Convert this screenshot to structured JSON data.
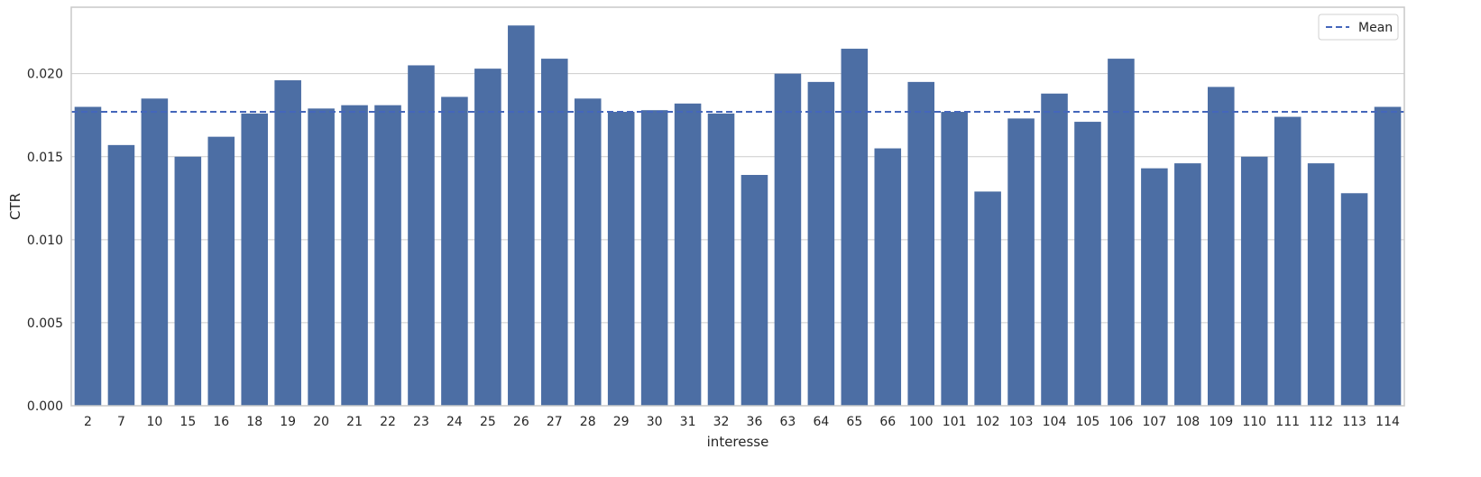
{
  "chart_data": {
    "type": "bar",
    "xlabel": "interesse",
    "ylabel": "CTR",
    "ylim": [
      0,
      0.024
    ],
    "yticks": [
      "0.000",
      "0.005",
      "0.010",
      "0.015",
      "0.020"
    ],
    "categories": [
      "2",
      "7",
      "10",
      "15",
      "16",
      "18",
      "19",
      "20",
      "21",
      "22",
      "23",
      "24",
      "25",
      "26",
      "27",
      "28",
      "29",
      "30",
      "31",
      "32",
      "36",
      "63",
      "64",
      "65",
      "66",
      "100",
      "101",
      "102",
      "103",
      "104",
      "105",
      "106",
      "107",
      "108",
      "109",
      "110",
      "111",
      "112",
      "113",
      "114"
    ],
    "values": [
      0.018,
      0.0157,
      0.0185,
      0.015,
      0.0162,
      0.0176,
      0.0196,
      0.0179,
      0.0181,
      0.0181,
      0.0205,
      0.0186,
      0.0203,
      0.0229,
      0.0209,
      0.0185,
      0.0177,
      0.0178,
      0.0182,
      0.0176,
      0.0139,
      0.02,
      0.0195,
      0.0215,
      0.0155,
      0.0195,
      0.0177,
      0.0129,
      0.0173,
      0.0188,
      0.0171,
      0.0209,
      0.0143,
      0.0146,
      0.0192,
      0.015,
      0.0174,
      0.0146,
      0.0128,
      0.018
    ],
    "mean": 0.0177,
    "legend": {
      "label": "Mean",
      "position": "top-right"
    },
    "grid": "y",
    "colors": {
      "bar": "#4c6ea4",
      "mean_line": "#4466bb",
      "grid": "#cccccc",
      "frame": "#c8c8c8"
    }
  }
}
